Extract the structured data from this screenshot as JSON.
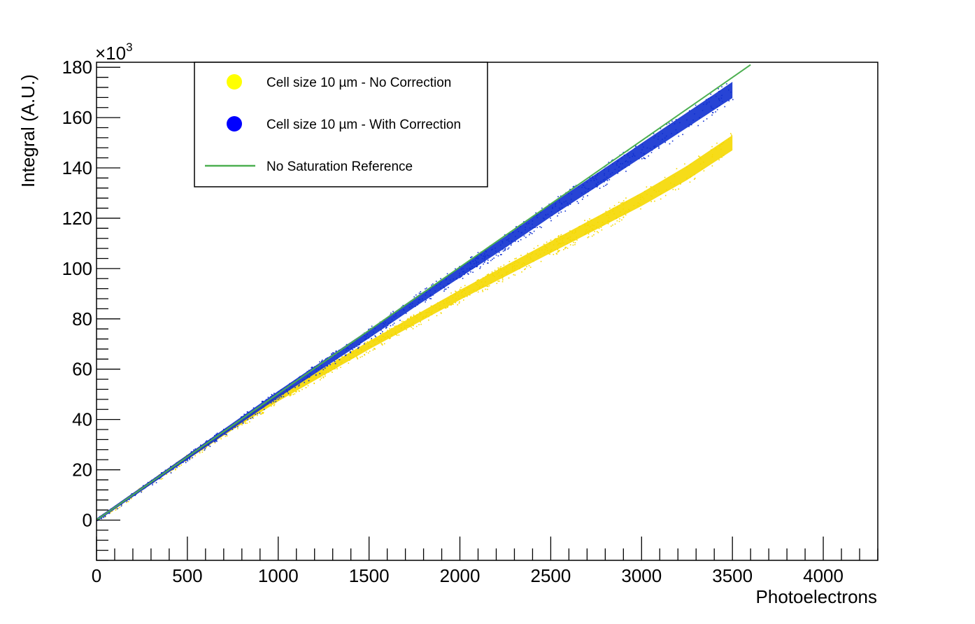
{
  "chart_data": {
    "type": "scatter",
    "title": "",
    "xlabel": "Photoelectrons",
    "ylabel": "Integral (A.U.)",
    "y_multiplier_label": "×10",
    "y_multiplier_exponent": "3",
    "xlim": [
      0,
      4300
    ],
    "ylim": [
      -16,
      182
    ],
    "x_major_ticks": [
      0,
      500,
      1000,
      1500,
      2000,
      2500,
      3000,
      3500,
      4000
    ],
    "x_tick_labels": [
      "0",
      "500",
      "1000",
      "1500",
      "2000",
      "2500",
      "3000",
      "3500",
      "4000"
    ],
    "y_major_ticks": [
      0,
      20,
      40,
      60,
      80,
      100,
      120,
      140,
      160,
      180
    ],
    "y_tick_labels": [
      "0",
      "20",
      "40",
      "60",
      "80",
      "100",
      "120",
      "140",
      "160",
      "180"
    ],
    "grid": false,
    "legend_position": "top-left",
    "series": [
      {
        "name": "Cell size 10 µm - No Correction",
        "kind": "scatter-band",
        "color": "#f5d800",
        "x": [
          0,
          250,
          500,
          750,
          1000,
          1250,
          1500,
          1750,
          2000,
          2250,
          2500,
          2750,
          3000,
          3250,
          3500
        ],
        "y": [
          0,
          12.5,
          25,
          37,
          48.5,
          59,
          69.5,
          79.5,
          89.5,
          99,
          108.5,
          118,
          127.5,
          138,
          150
        ]
      },
      {
        "name": "Cell size 10 µm - With Correction",
        "kind": "scatter-band",
        "color": "#1030d0",
        "x": [
          0,
          250,
          500,
          750,
          1000,
          1250,
          1500,
          1750,
          2000,
          2250,
          2500,
          2750,
          3000,
          3250,
          3500
        ],
        "y": [
          0,
          12.5,
          25,
          37.5,
          50,
          62,
          74,
          86.5,
          98.5,
          110.5,
          123,
          135,
          147,
          159,
          171
        ]
      },
      {
        "name": "No Saturation Reference",
        "kind": "line",
        "color": "#4caf50",
        "x": [
          0,
          3600
        ],
        "y": [
          0,
          181
        ]
      }
    ]
  },
  "legend": {
    "items": [
      {
        "label": "Cell size 10 µm - No Correction",
        "marker": "circle",
        "color": "#ffff00"
      },
      {
        "label": "Cell size 10 µm - With Correction",
        "marker": "circle",
        "color": "#0000ff"
      },
      {
        "label": "No Saturation Reference",
        "marker": "line",
        "color": "#4caf50"
      }
    ]
  }
}
